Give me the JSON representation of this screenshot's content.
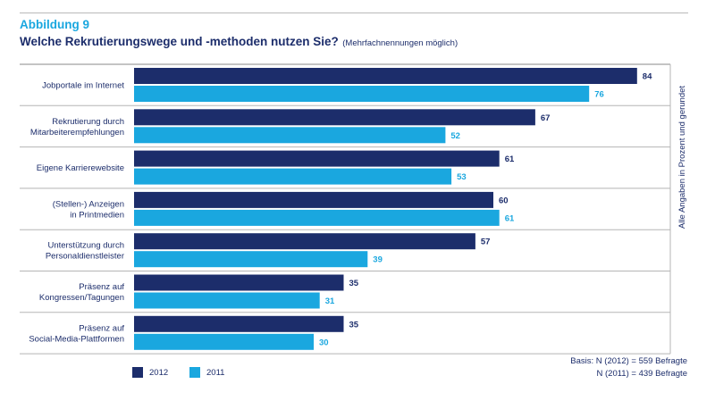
{
  "figure_label": "Abbildung 9",
  "title": "Welche Rekrutierungswege und -methoden nutzen Sie?",
  "subtitle": "(Mehrfachnennungen möglich)",
  "side_note": "Alle Angaben in Prozent und gerundet",
  "basis": {
    "line1": "Basis: N (2012) = 559 Befragte",
    "line2": "N (2011) = 439 Befragte"
  },
  "legend": [
    {
      "label": "2012",
      "color": "#1c2d6b"
    },
    {
      "label": "2011",
      "color": "#1aa7df"
    }
  ],
  "chart_data": {
    "type": "bar",
    "orientation": "horizontal",
    "categories": [
      "Jobportale im Internet",
      "Rekrutierung durch\nMitarbeiterempfehlungen",
      "Eigene Karrierewebsite",
      "(Stellen-) Anzeigen\nin Printmedien",
      "Unterstützung durch\nPersonaldienstleister",
      "Präsenz auf\nKongressen/Tagungen",
      "Präsenz auf\nSocial-Media-Plattformen"
    ],
    "series": [
      {
        "name": "2012",
        "color": "#1c2d6b",
        "values": [
          84,
          67,
          61,
          60,
          57,
          35,
          35
        ]
      },
      {
        "name": "2011",
        "color": "#1aa7df",
        "values": [
          76,
          52,
          53,
          61,
          39,
          31,
          30
        ]
      }
    ],
    "xlim": [
      0,
      100
    ]
  }
}
